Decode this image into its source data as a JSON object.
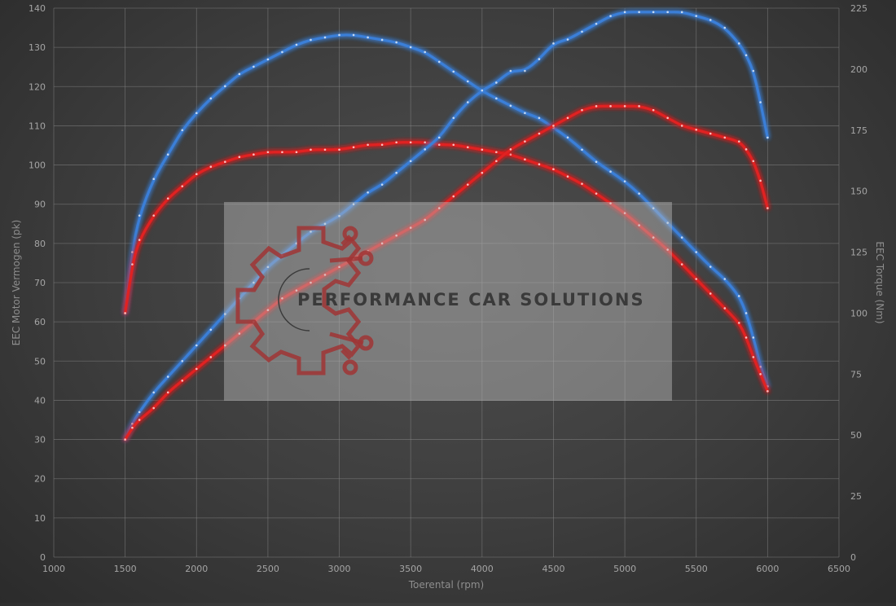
{
  "chart_data": {
    "type": "line",
    "xlabel": "Toerental (rpm)",
    "ylabel_left": "EEC Motor Vermogen (pk)",
    "ylabel_right": "EEC Torque (Nm)",
    "xlim": [
      1000,
      6500
    ],
    "ylim_left": [
      0,
      140
    ],
    "ylim_right": [
      0,
      225
    ],
    "x_ticks": [
      1000,
      1500,
      2000,
      2500,
      3000,
      3500,
      4000,
      4500,
      5000,
      5500,
      6000,
      6500
    ],
    "y_left_ticks": [
      0,
      10,
      20,
      30,
      40,
      50,
      60,
      70,
      80,
      90,
      100,
      110,
      120,
      130,
      140
    ],
    "y_right_ticks": [
      0,
      25,
      50,
      75,
      100,
      125,
      150,
      175,
      200,
      225
    ],
    "grid": true,
    "series": [
      {
        "kind": "torque-tuned",
        "axis": "right",
        "color": "#3a7fd8",
        "x": [
          1500,
          1550,
          1600,
          1700,
          1800,
          1900,
          2000,
          2100,
          2200,
          2300,
          2400,
          2500,
          2600,
          2700,
          2800,
          2900,
          3000,
          3100,
          3200,
          3300,
          3400,
          3500,
          3600,
          3700,
          3800,
          3900,
          4000,
          4100,
          4200,
          4300,
          4400,
          4500,
          4600,
          4700,
          4800,
          4900,
          5000,
          5100,
          5200,
          5300,
          5400,
          5500,
          5600,
          5700,
          5800,
          5850,
          5900,
          5950,
          6000
        ],
        "y": [
          100,
          125,
          140,
          155,
          165,
          175,
          182,
          188,
          193,
          198,
          201,
          204,
          207,
          210,
          212,
          213,
          214,
          214,
          213,
          212,
          211,
          209,
          207,
          203,
          199,
          195,
          191,
          188,
          185,
          182,
          180,
          176,
          172,
          167,
          162,
          158,
          154,
          149,
          143,
          137,
          131,
          125,
          119,
          114,
          107,
          100,
          90,
          78,
          70
        ]
      },
      {
        "kind": "torque-stock",
        "axis": "right",
        "color": "#e02020",
        "x": [
          1500,
          1550,
          1600,
          1700,
          1800,
          1900,
          2000,
          2100,
          2200,
          2300,
          2400,
          2500,
          2600,
          2700,
          2800,
          2900,
          3000,
          3100,
          3200,
          3300,
          3400,
          3500,
          3600,
          3700,
          3800,
          3900,
          4000,
          4100,
          4200,
          4300,
          4400,
          4500,
          4600,
          4700,
          4800,
          4900,
          5000,
          5100,
          5200,
          5300,
          5400,
          5500,
          5600,
          5700,
          5800,
          5850,
          5900,
          5950,
          6000
        ],
        "y": [
          100,
          120,
          130,
          140,
          147,
          152,
          157,
          160,
          162,
          164,
          165,
          166,
          166,
          166,
          167,
          167,
          167,
          168,
          169,
          169,
          170,
          170,
          170,
          169,
          169,
          168,
          167,
          166,
          165,
          163,
          161,
          159,
          156,
          153,
          149,
          145,
          141,
          136,
          131,
          126,
          120,
          114,
          108,
          102,
          96,
          90,
          82,
          75,
          68
        ]
      },
      {
        "kind": "power-tuned",
        "axis": "left",
        "color": "#3a7fd8",
        "x": [
          1500,
          1550,
          1600,
          1700,
          1800,
          1900,
          2000,
          2100,
          2200,
          2300,
          2400,
          2500,
          2600,
          2700,
          2800,
          2900,
          3000,
          3100,
          3200,
          3300,
          3400,
          3500,
          3600,
          3700,
          3800,
          3900,
          4000,
          4100,
          4200,
          4300,
          4400,
          4500,
          4600,
          4700,
          4800,
          4900,
          5000,
          5100,
          5200,
          5300,
          5400,
          5500,
          5600,
          5700,
          5800,
          5850,
          5900,
          5950,
          6000
        ],
        "y": [
          30,
          34,
          37,
          42,
          46,
          50,
          54,
          58,
          62,
          66,
          70,
          74,
          77,
          80,
          83,
          85,
          87,
          90,
          93,
          95,
          98,
          101,
          104,
          107,
          112,
          116,
          119,
          121,
          124,
          124,
          127,
          131,
          132,
          134,
          136,
          138,
          139,
          139,
          139,
          139,
          139,
          138,
          137,
          135,
          131,
          128,
          124,
          116,
          107
        ]
      },
      {
        "kind": "power-stock",
        "axis": "left",
        "color": "#e02020",
        "x": [
          1500,
          1550,
          1600,
          1700,
          1800,
          1900,
          2000,
          2100,
          2200,
          2300,
          2400,
          2500,
          2600,
          2700,
          2800,
          2900,
          3000,
          3100,
          3200,
          3300,
          3400,
          3500,
          3600,
          3700,
          3800,
          3900,
          4000,
          4100,
          4200,
          4300,
          4400,
          4500,
          4600,
          4700,
          4800,
          4900,
          5000,
          5100,
          5200,
          5300,
          5400,
          5500,
          5600,
          5700,
          5800,
          5850,
          5900,
          5950,
          6000
        ],
        "y": [
          30,
          33,
          35,
          38,
          42,
          45,
          48,
          51,
          54,
          57,
          60,
          63,
          66,
          68,
          70,
          72,
          74,
          76,
          78,
          80,
          82,
          84,
          86,
          89,
          92,
          95,
          98,
          101,
          104,
          106,
          108,
          110,
          112,
          114,
          115,
          115,
          115,
          115,
          114,
          112,
          110,
          109,
          108,
          107,
          106,
          104,
          101,
          96,
          89
        ]
      }
    ]
  },
  "watermark": {
    "brand_text": "PERFORMANCE CAR SOLUTIONS",
    "logo_icon": "gear-circuit-logo-icon",
    "logo_color": "#a03535"
  }
}
